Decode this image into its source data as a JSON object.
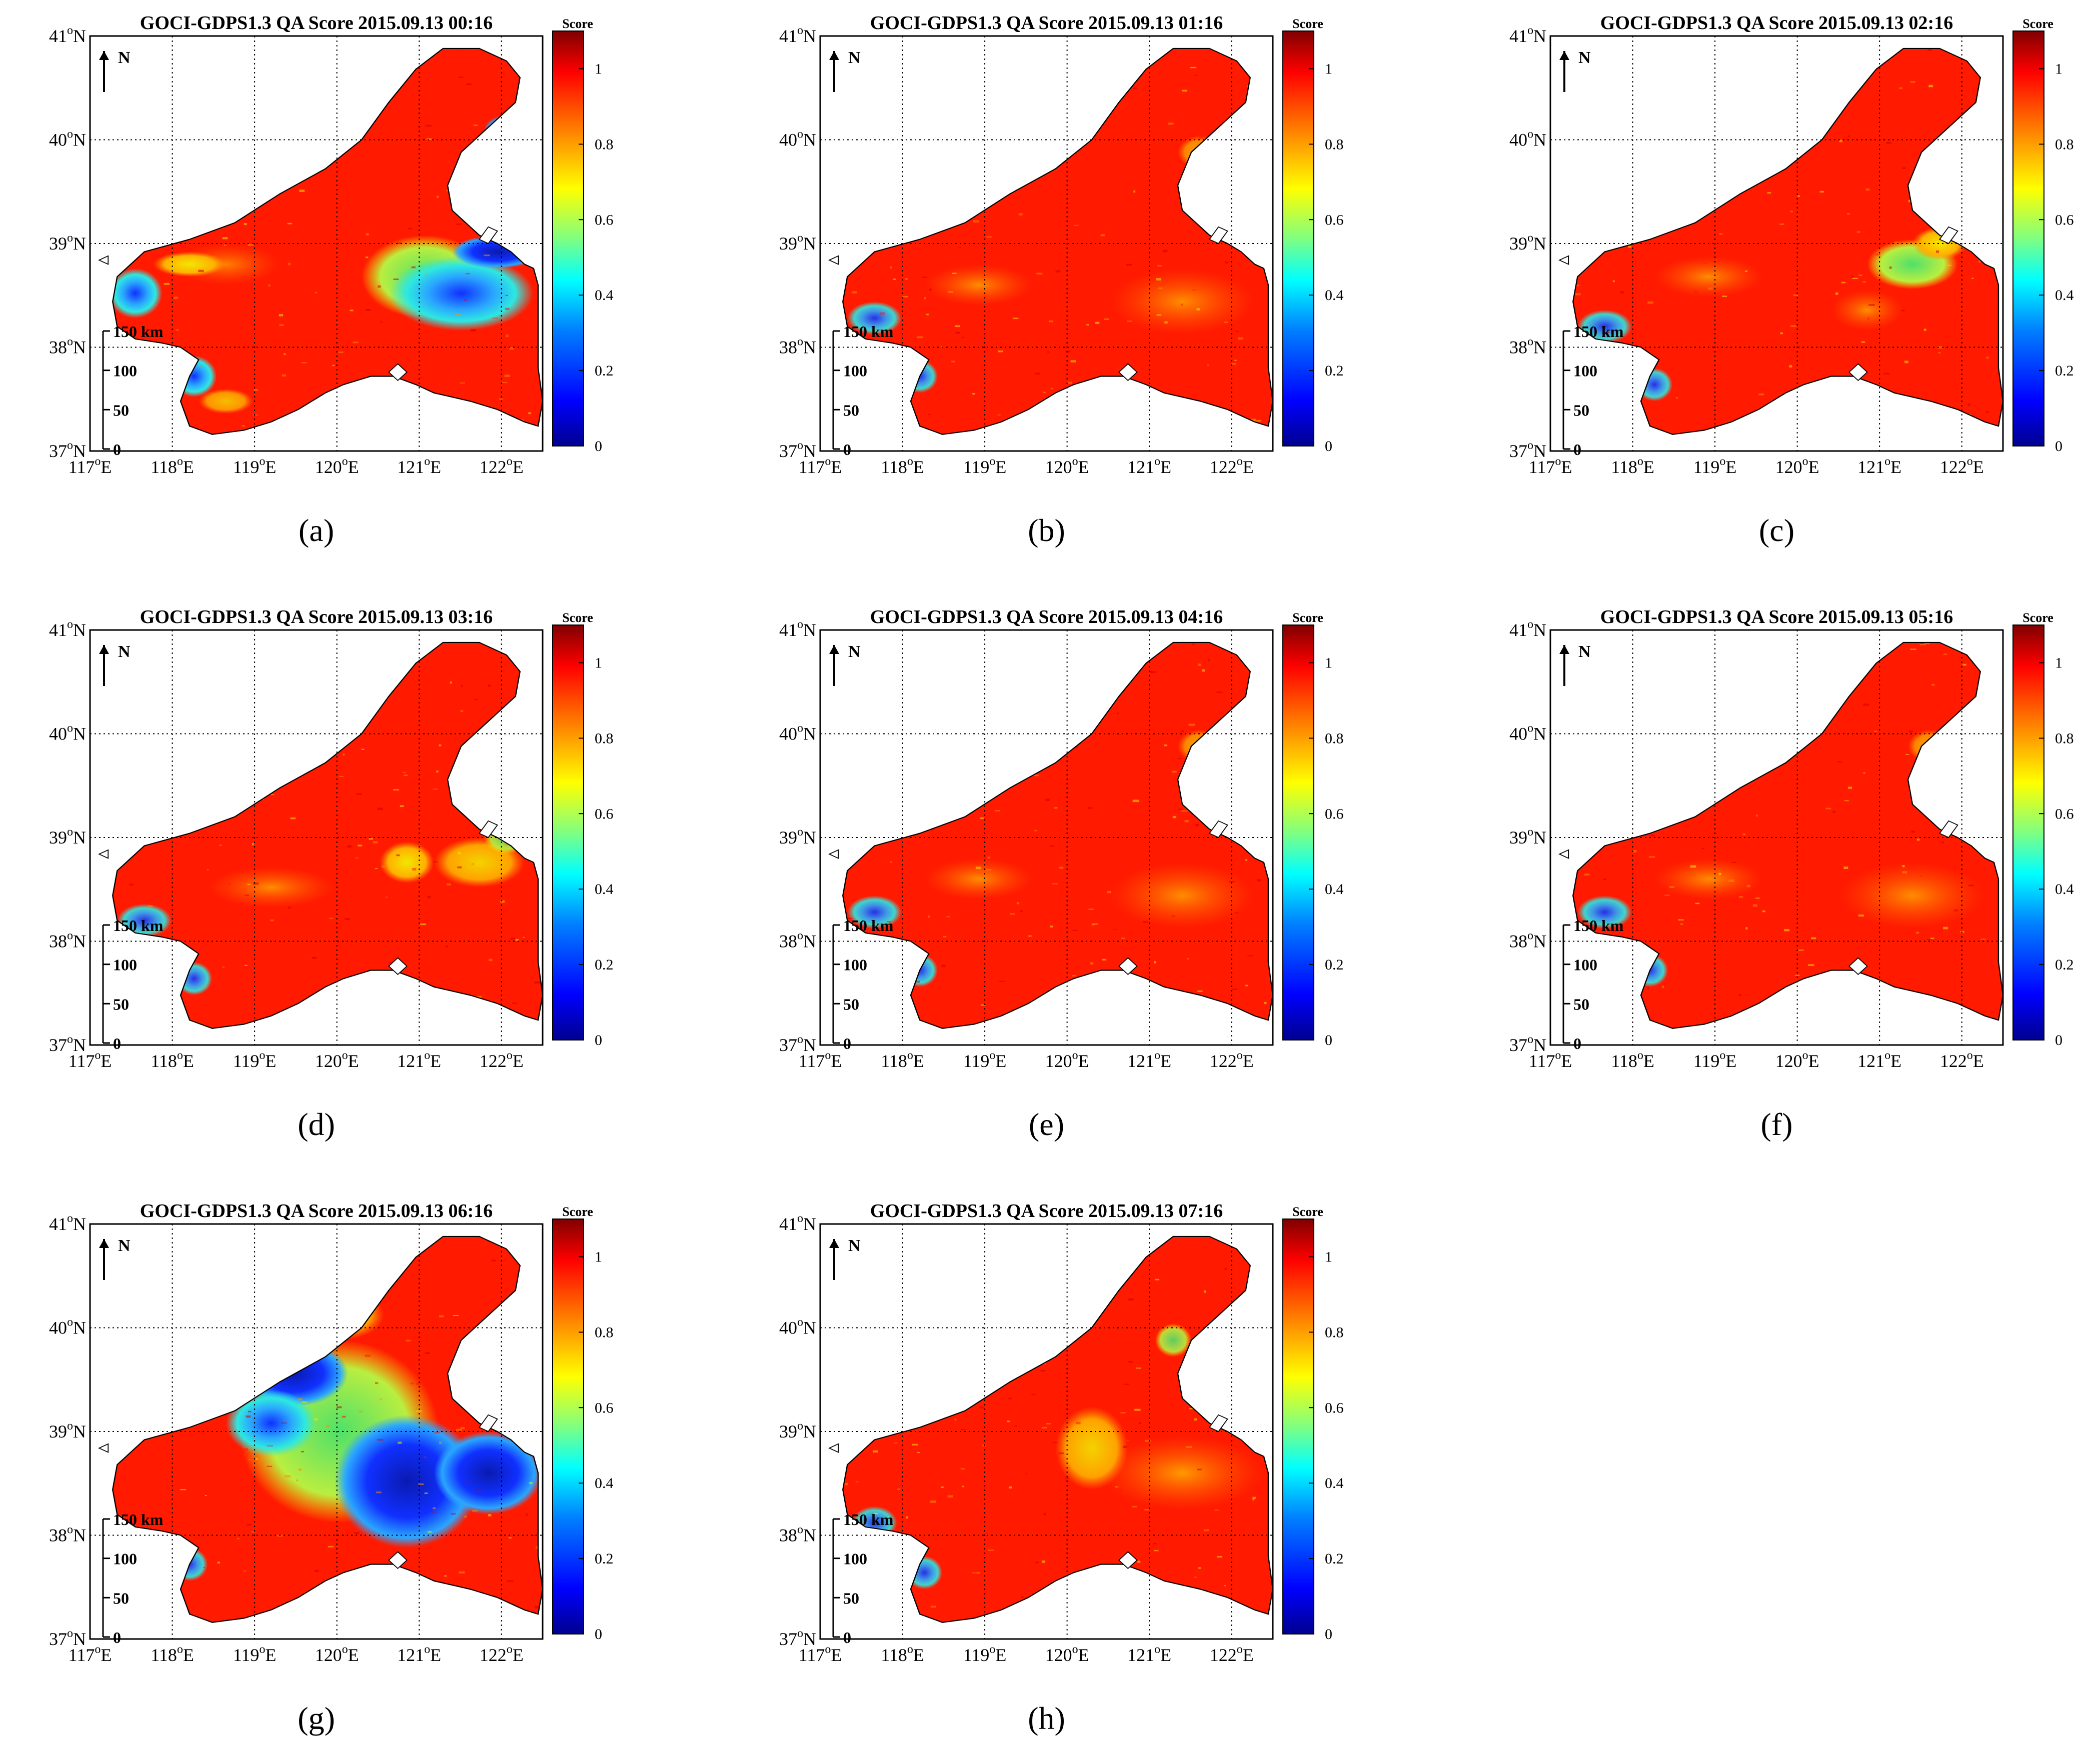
{
  "figure": {
    "panels": [
      {
        "letter": "a",
        "caption_text": "(a)",
        "title": "GOCI-GDPS1.3 QA Score 2015.09.13 00:16",
        "scenario": "cloud_east_low"
      },
      {
        "letter": "b",
        "caption_text": "(b)",
        "title": "GOCI-GDPS1.3 QA Score 2015.09.13 01:16",
        "scenario": "mostly_high"
      },
      {
        "letter": "c",
        "caption_text": "(c)",
        "title": "GOCI-GDPS1.3 QA Score 2015.09.13 02:16",
        "scenario": "mostly_high_green_east"
      },
      {
        "letter": "d",
        "caption_text": "(d)",
        "title": "GOCI-GDPS1.3 QA Score 2015.09.13 03:16",
        "scenario": "mostly_high_yellow_east"
      },
      {
        "letter": "e",
        "caption_text": "(e)",
        "title": "GOCI-GDPS1.3 QA Score 2015.09.13 04:16",
        "scenario": "mostly_high"
      },
      {
        "letter": "f",
        "caption_text": "(f)",
        "title": "GOCI-GDPS1.3 QA Score 2015.09.13 05:16",
        "scenario": "mostly_high"
      },
      {
        "letter": "g",
        "caption_text": "(g)",
        "title": "GOCI-GDPS1.3 QA Score 2015.09.13 06:16",
        "scenario": "cloud_central_low"
      },
      {
        "letter": "h",
        "caption_text": "(h)",
        "title": "GOCI-GDPS1.3 QA Score 2015.09.13 07:16",
        "scenario": "mostly_high_orange_east"
      }
    ],
    "lon_labels": [
      "117",
      "118",
      "119",
      "120",
      "121",
      "122"
    ],
    "lat_labels": [
      "37",
      "38",
      "39",
      "40",
      "41"
    ],
    "lon_suffix": "E",
    "lat_suffix": "N",
    "degree_mark": "o",
    "north_label": "N",
    "scalebar_labels": [
      "150 km",
      "100",
      "50",
      "0"
    ],
    "colorbar": {
      "title": "Score",
      "tick_labels": [
        "0",
        "0.2",
        "0.4",
        "0.6",
        "0.8",
        "1"
      ],
      "range": [
        0,
        1.1
      ],
      "colors": [
        "#00008f",
        "#0000ff",
        "#0080ff",
        "#00ffff",
        "#80ff80",
        "#ffff00",
        "#ff8000",
        "#ff0000",
        "#800000"
      ]
    },
    "score_palette": {
      "high": "#ff1a00",
      "orange": "#ff8a00",
      "yellow": "#f2e600",
      "green": "#4ee06a",
      "cyan": "#2de8e0",
      "lightblue": "#2aa6ff",
      "blue": "#1030ff",
      "navy": "#0a1ab0",
      "land": "#ffffff"
    }
  }
}
